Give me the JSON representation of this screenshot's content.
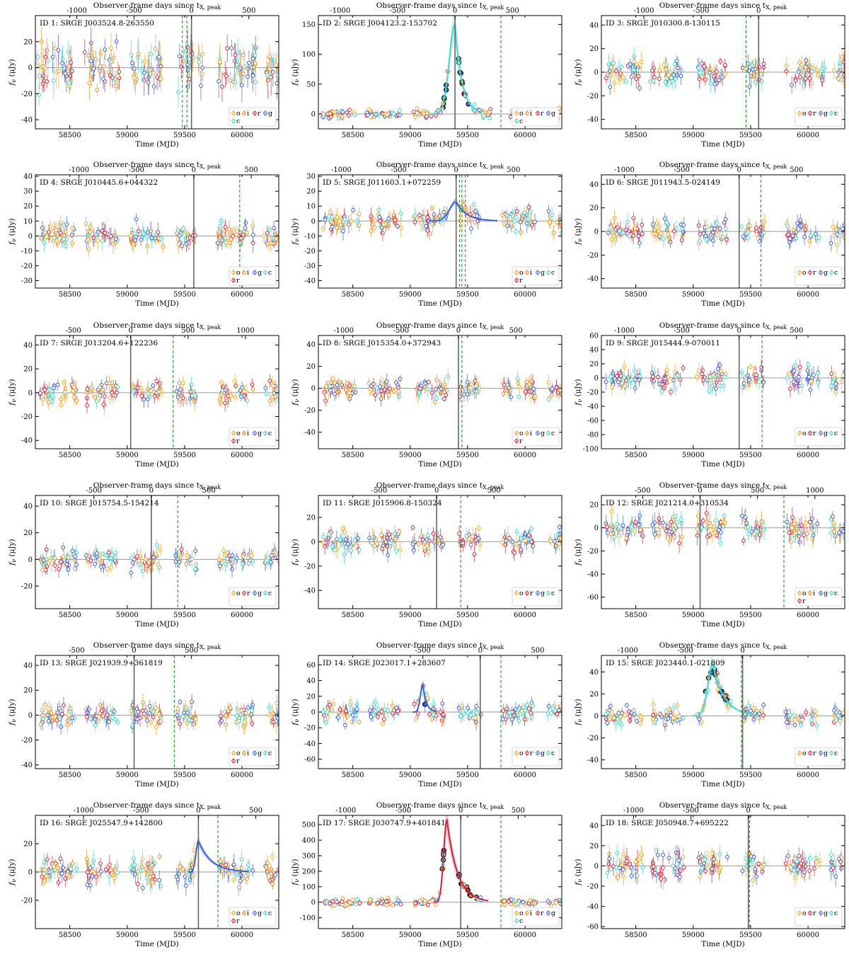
{
  "x_bottom_label": "Time (MJD)",
  "x_top_label": "Observer-frame days since t",
  "x_top_sub": "X, peak",
  "y_label": "f",
  "y_sub": "ν",
  "y_unit": "(μJy)",
  "band_colors": {
    "o": "#f5a623",
    "c": "#46d6c8",
    "i": "#f28c1e",
    "r": "#d6213c",
    "g": "#3b63d8"
  },
  "chart_data": [
    {
      "type": "scatter",
      "title": "ID 1: SRGE J003524.8-263550",
      "xlim": [
        58200,
        60320
      ],
      "ylim": [
        -47,
        40
      ],
      "xticks": [
        58500,
        59000,
        59500,
        60000
      ],
      "yticks": [
        -40,
        -20,
        0,
        20
      ],
      "t_peak": 59560,
      "top_ticks": [
        -1000,
        -500,
        0,
        500
      ],
      "dashed": [
        59480,
        59520
      ],
      "legend": [
        "o",
        "i",
        "r",
        "g",
        "c"
      ],
      "gap_starts": [
        58200,
        58620,
        59030,
        59440,
        59790,
        60200
      ],
      "gap_ends": [
        58520,
        58940,
        59310,
        59660,
        60120,
        60320
      ],
      "base_level": 0,
      "spread": 11,
      "flare": null,
      "model": null
    },
    {
      "type": "scatter",
      "title": "ID 2: SRGE J004123.2-153702",
      "xlim": [
        58200,
        60320
      ],
      "ylim": [
        -25,
        165
      ],
      "xticks": [
        58500,
        59000,
        59500,
        60000
      ],
      "yticks": [
        0,
        50,
        100,
        150
      ],
      "t_peak": 59390,
      "top_ticks": [
        -1000,
        -500,
        0,
        500
      ],
      "dashed": [
        59790
      ],
      "legend": [
        "o",
        "i",
        "r",
        "g",
        "c"
      ],
      "gap_starts": [
        58230,
        58620,
        59020,
        59420,
        59860,
        60200
      ],
      "gap_ends": [
        58520,
        58920,
        59330,
        59700,
        60120,
        60320
      ],
      "base_level": 0,
      "spread": 5,
      "flare": {
        "t0": 59390,
        "peak": 150,
        "rise": 70,
        "decay": 60
      },
      "model": {
        "color": "#46d6c8",
        "t0": 59390,
        "peak": 150,
        "rise": 70,
        "decay": 60
      }
    },
    {
      "type": "scatter",
      "title": "ID 3: SRGE J010300.8-130115",
      "xlim": [
        58200,
        60320
      ],
      "ylim": [
        -48,
        48
      ],
      "xticks": [
        58500,
        59000,
        59500,
        60000
      ],
      "yticks": [
        -40,
        -20,
        0,
        20,
        40
      ],
      "t_peak": 59570,
      "top_ticks": [
        -1000,
        -500,
        0
      ],
      "dashed": [
        59460
      ],
      "legend": [
        "o",
        "r",
        "g",
        "c"
      ],
      "gap_starts": [
        58220,
        58620,
        59020,
        59420,
        59800,
        60200
      ],
      "gap_ends": [
        58560,
        58900,
        59300,
        59620,
        60150,
        60320
      ],
      "base_level": 0,
      "spread": 7,
      "flare": null,
      "model": null
    },
    {
      "type": "scatter",
      "title": "ID 4: SRGE J010445.6+044322",
      "xlim": [
        58200,
        60320
      ],
      "ylim": [
        -35,
        41
      ],
      "xticks": [
        58500,
        59000,
        59500,
        60000
      ],
      "yticks": [
        -30,
        -20,
        -10,
        0,
        10,
        20,
        30,
        40
      ],
      "t_peak": 59580,
      "top_ticks": [
        -1000,
        -500,
        0,
        500
      ],
      "dashed": [
        59980
      ],
      "legend": [
        "o",
        "i",
        "g",
        "c",
        "r"
      ],
      "gap_starts": [
        58240,
        58640,
        59030,
        59420,
        59780,
        60190
      ],
      "gap_ends": [
        58560,
        58920,
        59320,
        59600,
        60100,
        60320
      ],
      "base_level": 0,
      "spread": 5,
      "flare": null,
      "model": null
    },
    {
      "type": "scatter",
      "title": "ID 5: SRGE J011603.1+072259",
      "xlim": [
        58200,
        60320
      ],
      "ylim": [
        -45,
        31
      ],
      "xticks": [
        58500,
        59000,
        59500,
        60000
      ],
      "yticks": [
        -40,
        -30,
        -20,
        -10,
        0,
        10,
        20,
        30
      ],
      "t_peak": 59400,
      "top_ticks": [
        -1000,
        -500,
        0,
        500
      ],
      "dashed": [
        59430,
        59450,
        59480
      ],
      "legend": [
        "o",
        "i",
        "g",
        "c",
        "r"
      ],
      "gap_starts": [
        58240,
        58650,
        59030,
        59420,
        59800,
        60200
      ],
      "gap_ends": [
        58560,
        58920,
        59320,
        59610,
        60100,
        60320
      ],
      "base_level": 0,
      "spread": 5,
      "flare": {
        "t0": 59400,
        "peak": 13,
        "rise": 80,
        "decay": 90
      },
      "model": {
        "color": "#3b63d8",
        "t0": 59400,
        "peak": 13,
        "rise": 80,
        "decay": 90
      }
    },
    {
      "type": "scatter",
      "title": "ID 6: SRGE J011943.5-024149",
      "xlim": [
        58200,
        60320
      ],
      "ylim": [
        -48,
        48
      ],
      "xticks": [
        58500,
        59000,
        59500,
        60000
      ],
      "yticks": [
        -40,
        -20,
        0,
        20,
        40
      ],
      "t_peak": 59400,
      "top_ticks": [
        -1000,
        -500,
        0,
        500
      ],
      "dashed": [
        59590
      ],
      "legend": [
        "o",
        "r",
        "g",
        "c"
      ],
      "gap_starts": [
        58240,
        58640,
        59030,
        59420,
        59800,
        60200
      ],
      "gap_ends": [
        58560,
        58920,
        59300,
        59620,
        60100,
        60320
      ],
      "base_level": 0,
      "spread": 6,
      "flare": null,
      "model": null
    },
    {
      "type": "scatter",
      "title": "ID 7: SRGE J013204.6+122236",
      "xlim": [
        58200,
        60320
      ],
      "ylim": [
        -47,
        48
      ],
      "xticks": [
        58500,
        59000,
        59500,
        60000
      ],
      "yticks": [
        -40,
        -20,
        0,
        20,
        40
      ],
      "t_peak": 59030,
      "top_ticks": [
        -500,
        0,
        500,
        1000
      ],
      "dashed": [
        59400
      ],
      "legend": [
        "o",
        "i",
        "g",
        "c",
        "r"
      ],
      "gap_starts": [
        58240,
        58640,
        59030,
        59420,
        59800,
        60200
      ],
      "gap_ends": [
        58560,
        58920,
        59300,
        59620,
        60100,
        60320
      ],
      "base_level": 0,
      "spread": 6,
      "flare": null,
      "model": null
    },
    {
      "type": "scatter",
      "title": "ID 8: SRGE J015354.0+372943",
      "xlim": [
        58200,
        60320
      ],
      "ylim": [
        -55,
        48
      ],
      "xticks": [
        58500,
        59000,
        59500,
        60000
      ],
      "yticks": [
        -40,
        -20,
        0,
        20,
        40
      ],
      "t_peak": 59420,
      "top_ticks": [
        -1000,
        -500,
        0,
        500
      ],
      "dashed": [
        59450
      ],
      "legend": [
        "o",
        "i",
        "g",
        "c",
        "r"
      ],
      "gap_starts": [
        58240,
        58640,
        59030,
        59420,
        59800,
        60200
      ],
      "gap_ends": [
        58560,
        58920,
        59330,
        59620,
        60100,
        60320
      ],
      "base_level": 0,
      "spread": 6,
      "flare": null,
      "model": null
    },
    {
      "type": "scatter",
      "title": "ID 9: SRGE J015444.9-070011",
      "xlim": [
        58200,
        60320
      ],
      "ylim": [
        -100,
        60
      ],
      "xticks": [
        58500,
        59000,
        59500,
        60000
      ],
      "yticks": [
        -100,
        -80,
        -60,
        -40,
        -20,
        0,
        20,
        40,
        60
      ],
      "t_peak": 59400,
      "top_ticks": [
        -1000,
        -500,
        0,
        500
      ],
      "dashed": [
        59600
      ],
      "legend": [
        "o",
        "r",
        "g",
        "c"
      ],
      "gap_starts": [
        58240,
        58640,
        59030,
        59420,
        59800,
        60200
      ],
      "gap_ends": [
        58560,
        58920,
        59300,
        59620,
        60100,
        60320
      ],
      "base_level": 0,
      "spread": 10,
      "flare": null,
      "model": null
    },
    {
      "type": "scatter",
      "title": "ID 10: SRGE J015754.5-154214",
      "xlim": [
        58200,
        60320
      ],
      "ylim": [
        -37,
        48
      ],
      "xticks": [
        58500,
        59000,
        59500,
        60000
      ],
      "yticks": [
        -20,
        0,
        20,
        40
      ],
      "t_peak": 59210,
      "top_ticks": [
        -500,
        0,
        500
      ],
      "dashed": [
        59440
      ],
      "legend": [
        "o",
        "r",
        "g",
        "c"
      ],
      "gap_starts": [
        58240,
        58640,
        59030,
        59420,
        59800,
        60200
      ],
      "gap_ends": [
        58560,
        58920,
        59300,
        59620,
        60100,
        60320
      ],
      "base_level": 0,
      "spread": 5,
      "flare": null,
      "model": null
    },
    {
      "type": "scatter",
      "title": "ID 11: SRGE J015906.8-150324",
      "xlim": [
        58200,
        60320
      ],
      "ylim": [
        -55,
        38
      ],
      "xticks": [
        58500,
        59000,
        59500,
        60000
      ],
      "yticks": [
        -40,
        -20,
        0,
        20
      ],
      "t_peak": 59230,
      "top_ticks": [
        -500,
        0,
        500
      ],
      "dashed": [
        59440
      ],
      "legend": [
        "o",
        "r",
        "g",
        "c"
      ],
      "gap_starts": [
        58240,
        58640,
        59020,
        59420,
        59800,
        60200
      ],
      "gap_ends": [
        58560,
        58920,
        59300,
        59620,
        60100,
        60320
      ],
      "base_level": 0,
      "spread": 6,
      "flare": null,
      "model": null
    },
    {
      "type": "scatter",
      "title": "ID 12: SRGE J021214.0+310534",
      "xlim": [
        58200,
        60320
      ],
      "ylim": [
        -70,
        28
      ],
      "xticks": [
        58500,
        59000,
        59500,
        60000
      ],
      "yticks": [
        -60,
        -40,
        -20,
        0,
        20
      ],
      "t_peak": 59060,
      "top_ticks": [
        -500,
        0,
        500,
        1000
      ],
      "dashed": [
        59790
      ],
      "legend": [
        "o",
        "i",
        "g",
        "c",
        "r"
      ],
      "gap_starts": [
        58240,
        58640,
        59030,
        59420,
        59800,
        60200
      ],
      "gap_ends": [
        58560,
        58920,
        59300,
        59620,
        60100,
        60320
      ],
      "base_level": 0,
      "spread": 7,
      "flare": null,
      "model": null
    },
    {
      "type": "scatter",
      "title": "ID 13: SRGE J021939.9+361819",
      "xlim": [
        58200,
        60320
      ],
      "ylim": [
        -43,
        48
      ],
      "xticks": [
        58500,
        59000,
        59500,
        60000
      ],
      "yticks": [
        -40,
        -20,
        0,
        20,
        40
      ],
      "t_peak": 59060,
      "top_ticks": [
        -500,
        0,
        500
      ],
      "dashed": [
        59410
      ],
      "legend": [
        "o",
        "i",
        "g",
        "c",
        "r"
      ],
      "gap_starts": [
        58240,
        58640,
        59030,
        59420,
        59800,
        60200
      ],
      "gap_ends": [
        58560,
        58920,
        59300,
        59620,
        60100,
        60320
      ],
      "base_level": 0,
      "spread": 6,
      "flare": null,
      "model": null
    },
    {
      "type": "scatter",
      "title": "ID 14: SRGE J023017.1+283607",
      "xlim": [
        58200,
        60320
      ],
      "ylim": [
        -72,
        72
      ],
      "xticks": [
        58500,
        59000,
        59500,
        60000
      ],
      "yticks": [
        -60,
        -40,
        -20,
        0,
        20,
        40,
        60
      ],
      "t_peak": 59610,
      "top_ticks": [
        -500,
        0,
        500
      ],
      "dashed": [
        59790
      ],
      "legend": [
        "o",
        "r",
        "g",
        "c"
      ],
      "gap_starts": [
        58240,
        58640,
        59030,
        59420,
        59800,
        60200
      ],
      "gap_ends": [
        58560,
        58920,
        59300,
        59620,
        60100,
        60320
      ],
      "base_level": 0,
      "spread": 8,
      "flare": {
        "t0": 59110,
        "peak": 35,
        "rise": 30,
        "decay": 30
      },
      "model": {
        "color": "#3b63d8",
        "t0": 59110,
        "peak": 35,
        "rise": 30,
        "decay": 30
      }
    },
    {
      "type": "scatter",
      "title": "ID 15: SRGE J023440.1-021809",
      "xlim": [
        58200,
        60320
      ],
      "ylim": [
        -48,
        55
      ],
      "xticks": [
        58500,
        59000,
        59500,
        60000
      ],
      "yticks": [
        -40,
        -20,
        0,
        20,
        40
      ],
      "t_peak": 59430,
      "top_ticks": [
        -1000,
        -500,
        0
      ],
      "dashed": [
        59420
      ],
      "legend": [
        "o",
        "r",
        "g",
        "c"
      ],
      "gap_starts": [
        58240,
        58640,
        59030,
        59420,
        59800,
        60200
      ],
      "gap_ends": [
        58560,
        58920,
        59330,
        59620,
        60100,
        60320
      ],
      "base_level": 0,
      "spread": 5,
      "flare": {
        "t0": 59170,
        "peak": 47,
        "rise": 60,
        "decay": 100
      },
      "model": {
        "color": "#46d6c8",
        "t0": 59170,
        "peak": 47,
        "rise": 60,
        "decay": 100
      }
    },
    {
      "type": "scatter",
      "title": "ID 16: SRGE J025547.9+142800",
      "xlim": [
        58200,
        60320
      ],
      "ylim": [
        -40,
        40
      ],
      "xticks": [
        58500,
        59000,
        59500,
        60000
      ],
      "yticks": [
        -20,
        0,
        20
      ],
      "t_peak": 59620,
      "top_ticks": [
        -1000,
        -500,
        0,
        500
      ],
      "dashed": [
        59790
      ],
      "legend": [
        "o",
        "i",
        "g",
        "c",
        "r"
      ],
      "gap_starts": [
        58240,
        58640,
        59030,
        59420,
        59800,
        60200
      ],
      "gap_ends": [
        58560,
        58920,
        59300,
        59600,
        60100,
        60320
      ],
      "base_level": 0,
      "spread": 6,
      "flare": {
        "t0": 59620,
        "peak": 22,
        "rise": 30,
        "decay": 110
      },
      "model": {
        "color": "#3b63d8",
        "t0": 59620,
        "peak": 22,
        "rise": 30,
        "decay": 110
      }
    },
    {
      "type": "scatter",
      "title": "ID 17: SRGE J030747.9+401841",
      "xlim": [
        58200,
        60320
      ],
      "ylim": [
        -170,
        560
      ],
      "xticks": [
        58500,
        59000,
        59500,
        60000
      ],
      "yticks": [
        -100,
        0,
        100,
        200,
        300,
        400,
        500
      ],
      "t_peak": 59440,
      "top_ticks": [
        -1000,
        -500,
        0,
        500
      ],
      "dashed": [
        59790
      ],
      "legend": [
        "o",
        "i",
        "r",
        "g",
        "c"
      ],
      "gap_starts": [
        58240,
        58640,
        59030,
        59420,
        59800,
        60200
      ],
      "gap_ends": [
        58560,
        58920,
        59300,
        59620,
        60100,
        60320
      ],
      "base_level": 0,
      "spread": 15,
      "flare": {
        "t0": 59320,
        "peak": 530,
        "rise": 40,
        "decay": 90
      },
      "model": {
        "color": "#d6213c",
        "t0": 59320,
        "peak": 530,
        "rise": 40,
        "decay": 90
      }
    },
    {
      "type": "scatter",
      "title": "ID 18: SRGE J050948.7+695222",
      "xlim": [
        58200,
        60320
      ],
      "ylim": [
        -62,
        50
      ],
      "xticks": [
        58500,
        59000,
        59500,
        60000
      ],
      "yticks": [
        -60,
        -40,
        -20,
        0,
        20,
        40
      ],
      "t_peak": 59480,
      "top_ticks": [
        -1000,
        -500,
        0
      ],
      "dashed": [
        59490
      ],
      "legend": [
        "o",
        "r",
        "g",
        "c"
      ],
      "gap_starts": [
        58240,
        58640,
        59030,
        59420,
        59800,
        60200
      ],
      "gap_ends": [
        58560,
        58920,
        59300,
        59620,
        60100,
        60320
      ],
      "base_level": 0,
      "spread": 8,
      "flare": null,
      "model": null
    }
  ]
}
